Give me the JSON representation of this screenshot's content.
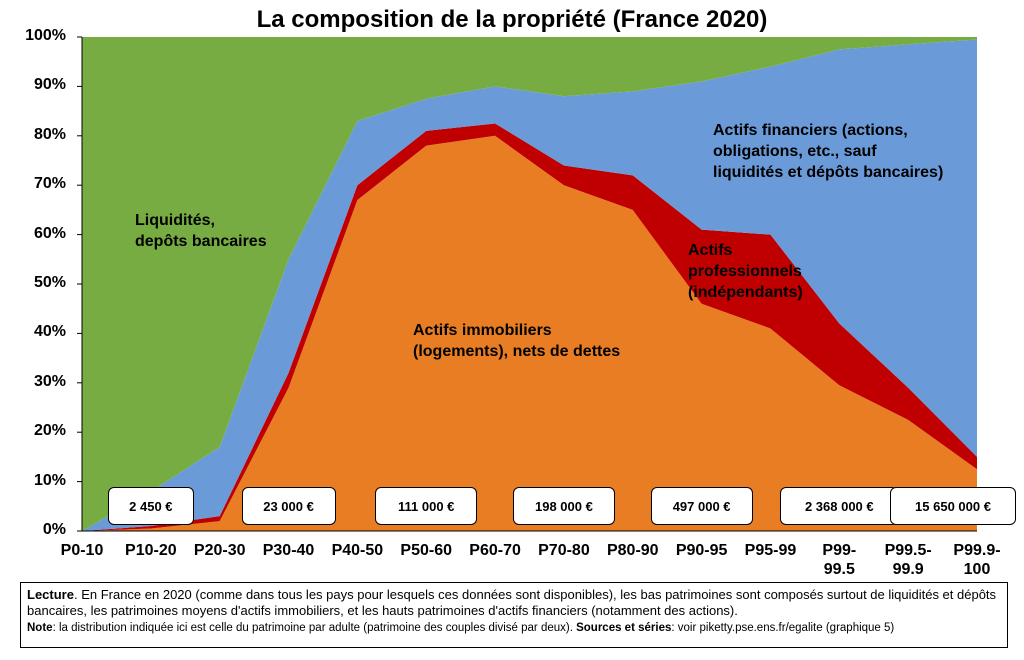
{
  "chart_data": {
    "type": "stacked-area",
    "title": "La composition de la propriété (France 2020)",
    "categories": [
      "P0-10",
      "P10-20",
      "P20-30",
      "P30-40",
      "P40-50",
      "P50-60",
      "P60-70",
      "P70-80",
      "P80-90",
      "P90-95",
      "P95-99",
      "P99-\n99.5",
      "P99.5-\n99.9",
      "P99.9-\n100"
    ],
    "series": [
      {
        "name": "Actifs immobiliers\n(logements), nets de dettes",
        "color": "#E87D24",
        "values": [
          0,
          0.5,
          2,
          29,
          67,
          78,
          80,
          70,
          65,
          46,
          41,
          29.5,
          22.5,
          12.5
        ]
      },
      {
        "name": "Actifs\nprofessionnels\n(indépendants)",
        "color": "#C00000",
        "values": [
          0,
          0.5,
          1,
          3,
          3,
          3,
          2.5,
          4,
          7,
          15,
          19,
          12.5,
          6.5,
          2.5
        ]
      },
      {
        "name": "Actifs financiers (actions,\nobligations, etc., sauf\nliquidités et dépôts bancaires)",
        "color": "#6A9BD8",
        "values": [
          0,
          7,
          14,
          23,
          13,
          6.5,
          7.5,
          14,
          17,
          30,
          34,
          55.5,
          69.5,
          84.5
        ]
      },
      {
        "name": "Liquidités,\ndepôts bancaires",
        "color": "#77AC42",
        "values": [
          100,
          92,
          83,
          45,
          17,
          12.5,
          10,
          12,
          11,
          9,
          6,
          2.5,
          1.5,
          0.5
        ]
      }
    ],
    "wealth_labels": [
      null,
      "2 450 €",
      null,
      "23 000 €",
      null,
      "111 000 €",
      null,
      "198 000 €",
      null,
      "497 000 €",
      null,
      "2 368 000 €",
      null,
      "15 650 000 €"
    ],
    "ylim": [
      0,
      100
    ],
    "yticks": [
      {
        "value": 0,
        "label": "0%"
      },
      {
        "value": 10,
        "label": "10%"
      },
      {
        "value": 20,
        "label": "20%"
      },
      {
        "value": 30,
        "label": "30%"
      },
      {
        "value": 40,
        "label": "40%"
      },
      {
        "value": 50,
        "label": "50%"
      },
      {
        "value": 60,
        "label": "60%"
      },
      {
        "value": 70,
        "label": "70%"
      },
      {
        "value": 80,
        "label": "80%"
      },
      {
        "value": 90,
        "label": "90%"
      },
      {
        "value": 100,
        "label": "100%"
      }
    ]
  },
  "note": {
    "lecture_label": "Lecture",
    "lecture_text": ". En France en 2020 (comme dans tous les pays pour lesquels ces données sont disponibles), les bas patrimoines sont composés surtout de liquidités et dépôts bancaires, les patrimoines moyens d'actifs immobiliers, et les hauts patrimoines d'actifs financiers (notamment des actions).",
    "note_label": "Note",
    "note_text": ": la distribution indiquée ici est celle du patrimoine par adulte (patrimoine des couples divisé par deux). ",
    "sources_label": "Sources et séries",
    "sources_text": ": voir piketty.pse.ens.fr/egalite (graphique 5)"
  }
}
